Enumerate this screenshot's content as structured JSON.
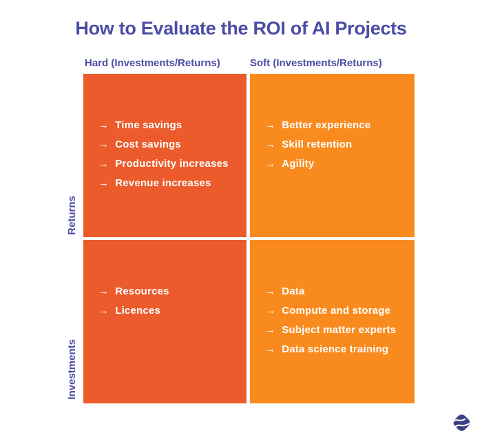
{
  "title": "How to Evaluate the ROI of AI Projects",
  "column_headers": [
    {
      "label": "Hard (Investments/Returns)"
    },
    {
      "label": "Soft (Investments/Returns)"
    }
  ],
  "row_headers": [
    {
      "label": "Returns"
    },
    {
      "label": "Investments"
    }
  ],
  "arrow_glyph": "→",
  "quadrants": {
    "hard_returns": {
      "items": [
        "Time savings",
        "Cost savings",
        "Productivity increases",
        "Revenue increases"
      ]
    },
    "soft_returns": {
      "items": [
        "Better experience",
        "Skill retention",
        "Agility"
      ]
    },
    "hard_investments": {
      "items": [
        "Resources",
        "Licences"
      ]
    },
    "soft_investments": {
      "items": [
        "Data",
        "Compute and storage",
        "Subject matter experts",
        "Data science training"
      ]
    }
  },
  "colors": {
    "hard_quadrant": "#eb5b2c",
    "soft_quadrant": "#f98b1e",
    "heading_purple": "#4b4ca5",
    "item_text": "#ffffff",
    "background": "#ffffff",
    "logo_indigo": "#3a3e85"
  },
  "logo": {
    "icon": "wave-diamond-logo"
  }
}
